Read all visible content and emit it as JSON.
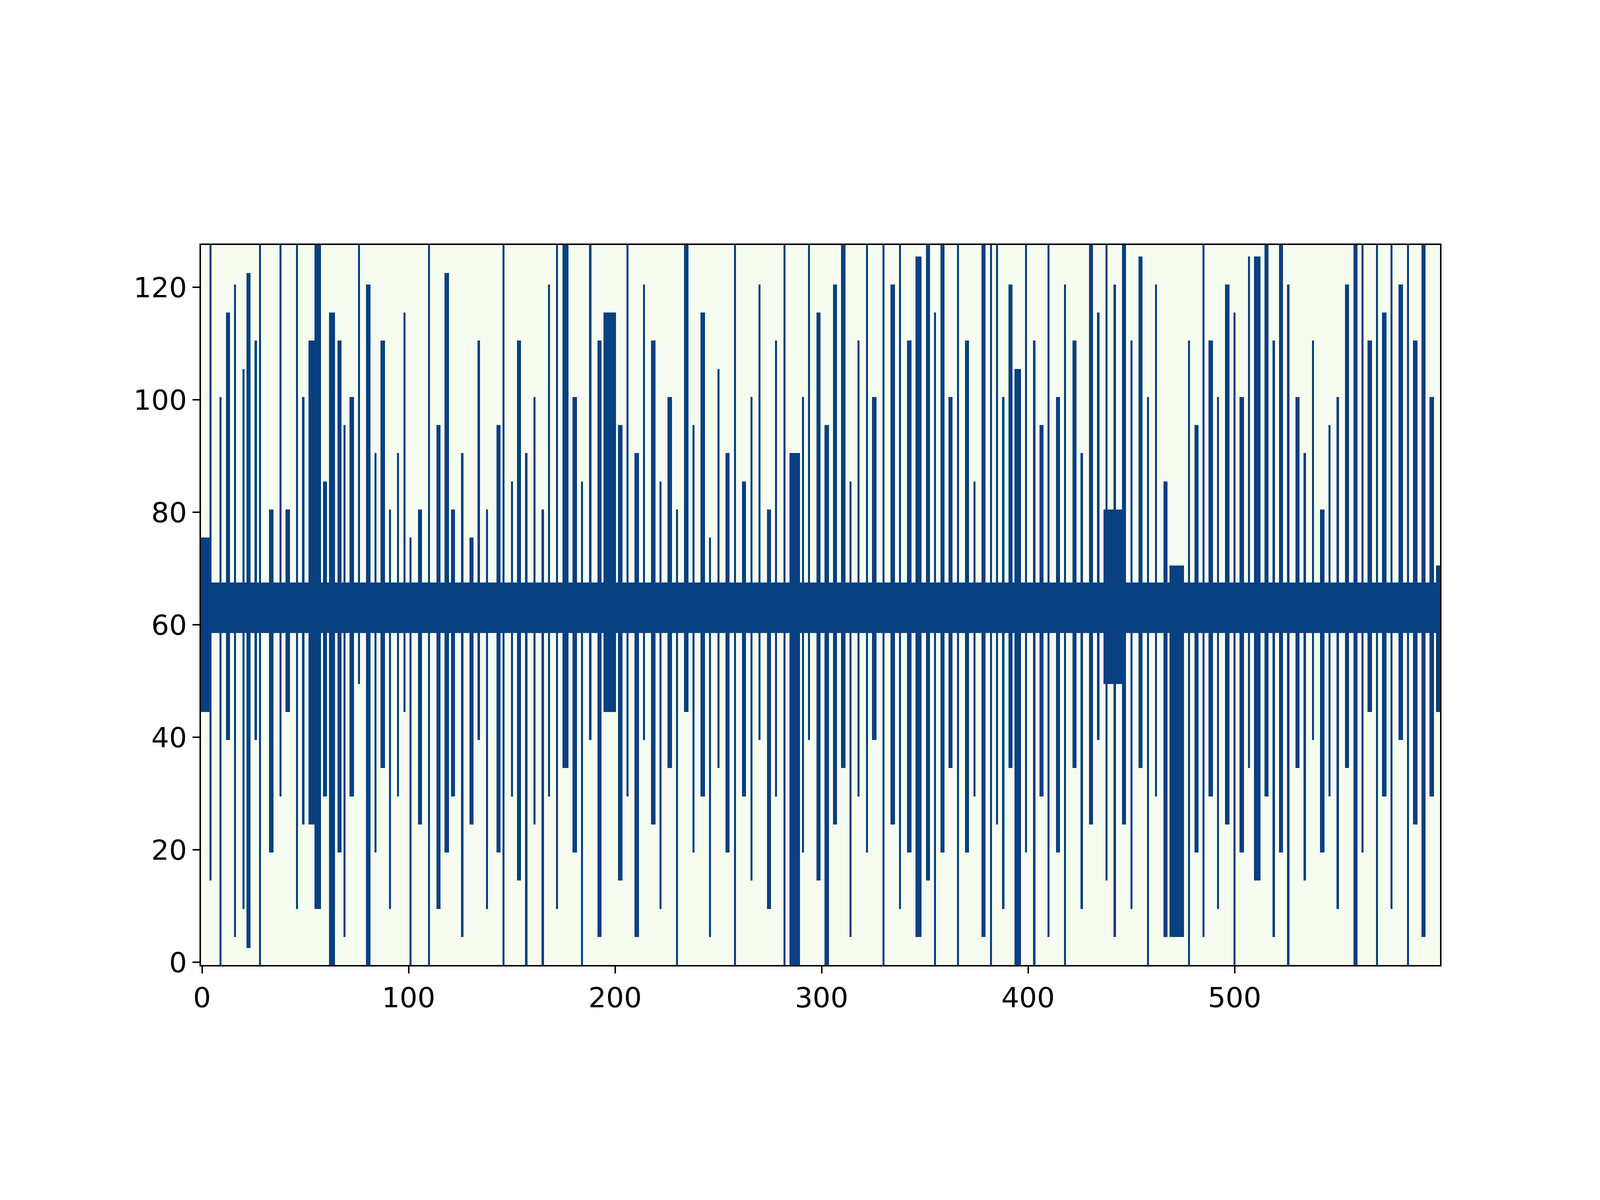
{
  "chart_data": {
    "type": "heatmap",
    "rows": 128,
    "columns": 600,
    "cell_values": [
      0,
      1
    ],
    "colors": [
      "#f7fcf0",
      "#084081"
    ],
    "xlim": [
      -0.5,
      599.5
    ],
    "ylim": [
      -0.5,
      127.5
    ],
    "xticks": [
      0,
      100,
      200,
      300,
      400,
      500
    ],
    "yticks": [
      0,
      20,
      40,
      60,
      80,
      100,
      120
    ],
    "grid": false,
    "cells": [
      [
        0,
        599,
        59,
        67
      ],
      [
        0,
        3,
        45,
        75
      ],
      [
        4,
        4,
        15,
        127
      ],
      [
        9,
        9,
        0,
        100
      ],
      [
        12,
        13,
        40,
        115
      ],
      [
        16,
        16,
        5,
        120
      ],
      [
        20,
        20,
        10,
        105
      ],
      [
        22,
        23,
        3,
        122
      ],
      [
        26,
        26,
        40,
        110
      ],
      [
        28,
        28,
        0,
        127
      ],
      [
        33,
        34,
        20,
        80
      ],
      [
        38,
        38,
        30,
        127
      ],
      [
        41,
        42,
        45,
        80
      ],
      [
        46,
        46,
        10,
        127
      ],
      [
        49,
        49,
        25,
        100
      ],
      [
        52,
        54,
        25,
        110
      ],
      [
        55,
        57,
        10,
        127
      ],
      [
        59,
        60,
        30,
        85
      ],
      [
        62,
        64,
        0,
        115
      ],
      [
        66,
        67,
        20,
        110
      ],
      [
        69,
        69,
        5,
        95
      ],
      [
        72,
        73,
        30,
        100
      ],
      [
        76,
        76,
        50,
        127
      ],
      [
        80,
        81,
        0,
        120
      ],
      [
        84,
        84,
        20,
        90
      ],
      [
        87,
        88,
        35,
        110
      ],
      [
        91,
        91,
        10,
        80
      ],
      [
        95,
        95,
        30,
        90
      ],
      [
        98,
        98,
        45,
        115
      ],
      [
        101,
        101,
        0,
        75
      ],
      [
        105,
        106,
        25,
        80
      ],
      [
        110,
        110,
        0,
        127
      ],
      [
        114,
        115,
        10,
        95
      ],
      [
        118,
        119,
        20,
        122
      ],
      [
        121,
        122,
        30,
        80
      ],
      [
        126,
        126,
        5,
        90
      ],
      [
        130,
        131,
        25,
        75
      ],
      [
        134,
        134,
        40,
        110
      ],
      [
        138,
        138,
        10,
        80
      ],
      [
        143,
        144,
        20,
        95
      ],
      [
        146,
        146,
        0,
        127
      ],
      [
        150,
        150,
        30,
        85
      ],
      [
        153,
        154,
        15,
        110
      ],
      [
        157,
        157,
        0,
        90
      ],
      [
        161,
        161,
        25,
        100
      ],
      [
        165,
        165,
        0,
        80
      ],
      [
        168,
        168,
        30,
        120
      ],
      [
        172,
        172,
        10,
        127
      ],
      [
        175,
        177,
        35,
        127
      ],
      [
        180,
        181,
        20,
        100
      ],
      [
        184,
        184,
        0,
        85
      ],
      [
        188,
        188,
        40,
        127
      ],
      [
        192,
        193,
        5,
        110
      ],
      [
        195,
        200,
        45,
        115
      ],
      [
        202,
        203,
        15,
        95
      ],
      [
        206,
        206,
        30,
        127
      ],
      [
        210,
        211,
        5,
        90
      ],
      [
        214,
        214,
        40,
        120
      ],
      [
        218,
        219,
        25,
        110
      ],
      [
        222,
        222,
        10,
        85
      ],
      [
        226,
        227,
        35,
        100
      ],
      [
        230,
        230,
        0,
        80
      ],
      [
        234,
        235,
        45,
        127
      ],
      [
        238,
        238,
        20,
        95
      ],
      [
        242,
        243,
        30,
        115
      ],
      [
        246,
        246,
        5,
        75
      ],
      [
        250,
        250,
        35,
        105
      ],
      [
        254,
        255,
        20,
        90
      ],
      [
        258,
        258,
        0,
        127
      ],
      [
        262,
        263,
        30,
        85
      ],
      [
        266,
        266,
        15,
        100
      ],
      [
        270,
        270,
        40,
        120
      ],
      [
        274,
        275,
        10,
        80
      ],
      [
        278,
        278,
        30,
        110
      ],
      [
        282,
        282,
        0,
        127
      ],
      [
        285,
        289,
        0,
        90
      ],
      [
        291,
        291,
        20,
        100
      ],
      [
        294,
        294,
        40,
        127
      ],
      [
        298,
        299,
        15,
        115
      ],
      [
        302,
        303,
        0,
        95
      ],
      [
        306,
        307,
        25,
        120
      ],
      [
        310,
        311,
        35,
        127
      ],
      [
        314,
        314,
        5,
        85
      ],
      [
        318,
        318,
        30,
        110
      ],
      [
        322,
        322,
        20,
        127
      ],
      [
        325,
        326,
        40,
        100
      ],
      [
        330,
        330,
        0,
        127
      ],
      [
        334,
        335,
        25,
        120
      ],
      [
        338,
        338,
        10,
        127
      ],
      [
        342,
        343,
        20,
        110
      ],
      [
        346,
        348,
        5,
        125
      ],
      [
        351,
        352,
        15,
        127
      ],
      [
        355,
        355,
        0,
        115
      ],
      [
        358,
        359,
        20,
        127
      ],
      [
        362,
        363,
        35,
        100
      ],
      [
        366,
        366,
        0,
        127
      ],
      [
        370,
        371,
        20,
        110
      ],
      [
        374,
        374,
        30,
        85
      ],
      [
        378,
        379,
        5,
        127
      ],
      [
        382,
        382,
        0,
        127
      ],
      [
        385,
        385,
        25,
        127
      ],
      [
        388,
        388,
        10,
        100
      ],
      [
        391,
        392,
        35,
        120
      ],
      [
        394,
        396,
        0,
        105
      ],
      [
        399,
        399,
        20,
        127
      ],
      [
        403,
        403,
        0,
        110
      ],
      [
        406,
        407,
        30,
        95
      ],
      [
        410,
        410,
        5,
        127
      ],
      [
        414,
        415,
        20,
        100
      ],
      [
        418,
        418,
        0,
        120
      ],
      [
        422,
        423,
        35,
        110
      ],
      [
        426,
        426,
        10,
        90
      ],
      [
        430,
        431,
        25,
        127
      ],
      [
        434,
        434,
        40,
        115
      ],
      [
        437,
        445,
        50,
        80
      ],
      [
        438,
        438,
        15,
        127
      ],
      [
        442,
        442,
        5,
        120
      ],
      [
        446,
        447,
        25,
        127
      ],
      [
        450,
        450,
        10,
        110
      ],
      [
        454,
        455,
        35,
        125
      ],
      [
        458,
        458,
        0,
        100
      ],
      [
        462,
        462,
        30,
        120
      ],
      [
        466,
        467,
        5,
        85
      ],
      [
        469,
        475,
        5,
        70
      ],
      [
        478,
        478,
        0,
        110
      ],
      [
        481,
        482,
        20,
        95
      ],
      [
        485,
        485,
        5,
        127
      ],
      [
        488,
        489,
        30,
        110
      ],
      [
        492,
        492,
        10,
        100
      ],
      [
        496,
        497,
        25,
        120
      ],
      [
        500,
        500,
        0,
        115
      ],
      [
        503,
        504,
        20,
        100
      ],
      [
        507,
        507,
        35,
        125
      ],
      [
        510,
        512,
        15,
        125
      ],
      [
        515,
        516,
        30,
        127
      ],
      [
        519,
        519,
        5,
        110
      ],
      [
        522,
        523,
        20,
        127
      ],
      [
        526,
        526,
        0,
        120
      ],
      [
        530,
        531,
        35,
        100
      ],
      [
        534,
        534,
        15,
        90
      ],
      [
        538,
        538,
        40,
        110
      ],
      [
        542,
        543,
        20,
        80
      ],
      [
        546,
        546,
        30,
        95
      ],
      [
        550,
        550,
        10,
        100
      ],
      [
        554,
        555,
        35,
        120
      ],
      [
        558,
        559,
        0,
        127
      ],
      [
        562,
        562,
        20,
        127
      ],
      [
        565,
        566,
        45,
        110
      ],
      [
        569,
        569,
        0,
        127
      ],
      [
        572,
        573,
        30,
        115
      ],
      [
        576,
        576,
        10,
        127
      ],
      [
        580,
        581,
        40,
        120
      ],
      [
        584,
        584,
        0,
        127
      ],
      [
        587,
        588,
        25,
        110
      ],
      [
        591,
        592,
        5,
        127
      ],
      [
        595,
        596,
        30,
        100
      ],
      [
        598,
        599,
        45,
        70
      ]
    ]
  }
}
